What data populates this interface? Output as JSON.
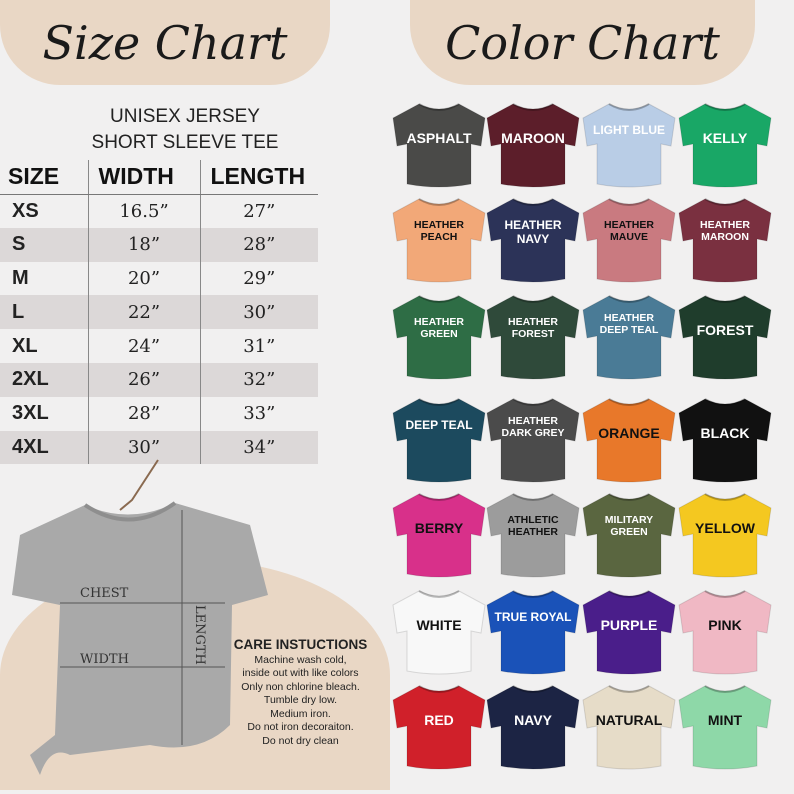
{
  "size_chart": {
    "title": "Size Chart",
    "subtitle_line1": "UNISEX JERSEY",
    "subtitle_line2": "SHORT SLEEVE TEE",
    "headers": [
      "SIZE",
      "WIDTH",
      "LENGTH"
    ],
    "rows": [
      [
        "XS",
        "16.5”",
        "27”"
      ],
      [
        "S",
        "18”",
        "28”"
      ],
      [
        "M",
        "20”",
        "29”"
      ],
      [
        "L",
        "22”",
        "30”"
      ],
      [
        "XL",
        "24”",
        "31”"
      ],
      [
        "2XL",
        "26”",
        "32”"
      ],
      [
        "3XL",
        "28”",
        "33”"
      ],
      [
        "4XL",
        "30”",
        "34”"
      ]
    ]
  },
  "diagram": {
    "chest": "CHEST",
    "width": "WIDTH",
    "length": "LENGTH"
  },
  "care": {
    "title": "CARE INSTUCTIONS",
    "lines": [
      "Machine wash cold,",
      "inside out with like colors",
      "Only non chlorine bleach.",
      "Tumble dry low.",
      "Medium iron.",
      "Do not iron decoraiton.",
      "Do not dry clean"
    ]
  },
  "color_chart": {
    "title": "Color Chart",
    "colors": [
      {
        "name": "ASPHALT",
        "hex": "#4a4a48",
        "text": "#ffffff"
      },
      {
        "name": "MAROON",
        "hex": "#5c1e2a",
        "text": "#ffffff"
      },
      {
        "name": "LIGHT BLUE",
        "hex": "#b9cde6",
        "text": "#ffffff"
      },
      {
        "name": "KELLY",
        "hex": "#19a766",
        "text": "#ffffff"
      },
      {
        "name": "HEATHER PEACH",
        "hex": "#f2a878",
        "text": "#111111"
      },
      {
        "name": "HEATHER NAVY",
        "hex": "#2c3358",
        "text": "#ffffff"
      },
      {
        "name": "HEATHER MAUVE",
        "hex": "#c97a80",
        "text": "#111111"
      },
      {
        "name": "HEATHER MAROON",
        "hex": "#7a3040",
        "text": "#ffffff"
      },
      {
        "name": "HEATHER GREEN",
        "hex": "#2e6d45",
        "text": "#ffffff"
      },
      {
        "name": "HEATHER FOREST",
        "hex": "#2f4a3a",
        "text": "#ffffff"
      },
      {
        "name": "HEATHER DEEP TEAL",
        "hex": "#4a7b96",
        "text": "#ffffff"
      },
      {
        "name": "FOREST",
        "hex": "#1f3d2c",
        "text": "#ffffff"
      },
      {
        "name": "DEEP TEAL",
        "hex": "#1c4a5e",
        "text": "#ffffff"
      },
      {
        "name": "HEATHER DARK GREY",
        "hex": "#4b4b4b",
        "text": "#ffffff"
      },
      {
        "name": "ORANGE",
        "hex": "#e8782a",
        "text": "#111111"
      },
      {
        "name": "BLACK",
        "hex": "#111111",
        "text": "#ffffff"
      },
      {
        "name": "BERRY",
        "hex": "#d8308a",
        "text": "#111111"
      },
      {
        "name": "ATHLETIC HEATHER",
        "hex": "#9c9c9c",
        "text": "#111111"
      },
      {
        "name": "MILITARY GREEN",
        "hex": "#5a6640",
        "text": "#ffffff"
      },
      {
        "name": "YELLOW",
        "hex": "#f4c820",
        "text": "#111111"
      },
      {
        "name": "WHITE",
        "hex": "#f8f8f8",
        "text": "#111111"
      },
      {
        "name": "TRUE ROYAL",
        "hex": "#1a52b8",
        "text": "#ffffff"
      },
      {
        "name": "PURPLE",
        "hex": "#4a1e8a",
        "text": "#ffffff"
      },
      {
        "name": "PINK",
        "hex": "#f0b8c4",
        "text": "#111111"
      },
      {
        "name": "RED",
        "hex": "#d0202a",
        "text": "#ffffff"
      },
      {
        "name": "NAVY",
        "hex": "#1c2444",
        "text": "#ffffff"
      },
      {
        "name": "NATURAL",
        "hex": "#e6dcc8",
        "text": "#111111"
      },
      {
        "name": "MINT",
        "hex": "#8ed8a8",
        "text": "#111111"
      }
    ]
  }
}
